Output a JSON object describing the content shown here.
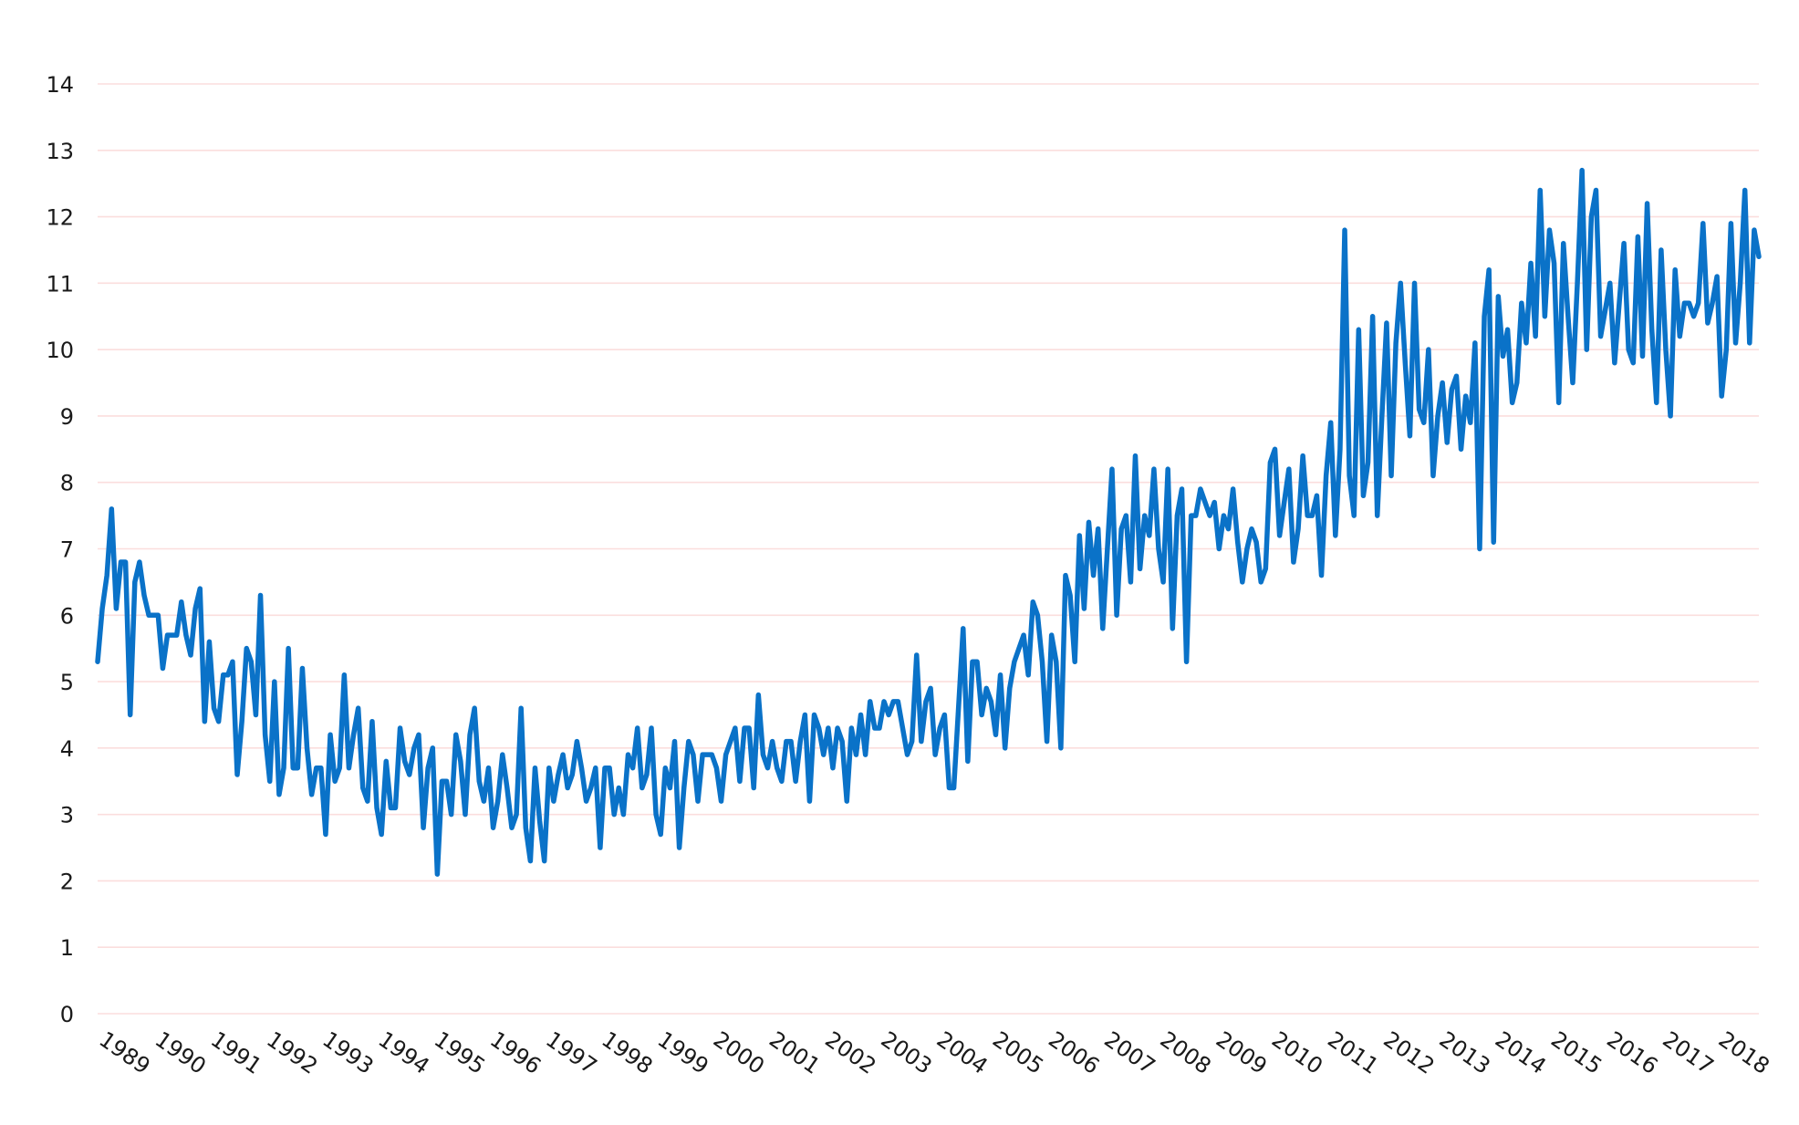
{
  "chart_data": {
    "type": "line",
    "title": "",
    "xlabel": "",
    "ylabel": "",
    "ylim": [
      0,
      14
    ],
    "yticks": [
      0,
      1,
      2,
      3,
      4,
      5,
      6,
      7,
      8,
      9,
      10,
      11,
      12,
      13,
      14
    ],
    "ytick_labels": [
      "0",
      "1",
      "2",
      "3",
      "4",
      "5",
      "6",
      "7",
      "8",
      "9",
      "10",
      "11",
      "12",
      "13",
      "14"
    ],
    "xtick_labels": [
      "1989",
      "1990",
      "1991",
      "1992",
      "1993",
      "1994",
      "1995",
      "1996",
      "1997",
      "1998",
      "1999",
      "2000",
      "2001",
      "2002",
      "2003",
      "2004",
      "2005",
      "2006",
      "2007",
      "2008",
      "2009",
      "2010",
      "2011",
      "2012",
      "2013",
      "2014",
      "2015",
      "2016",
      "2017",
      "2018"
    ],
    "xlim": [
      "1989-01",
      "2018-09"
    ],
    "grid": true,
    "colors": {
      "series": "#0a72c8",
      "grid": "#fbdedd",
      "text": "#1a1a1a"
    },
    "series": [
      {
        "frequency": "monthly",
        "start": "1989-01",
        "values": [
          5.3,
          6.1,
          6.6,
          7.6,
          6.1,
          6.8,
          6.8,
          4.5,
          6.5,
          6.8,
          6.3,
          6.0,
          6.0,
          6.0,
          5.2,
          5.7,
          5.7,
          5.7,
          6.2,
          5.7,
          5.4,
          6.1,
          6.4,
          4.4,
          5.6,
          4.6,
          4.4,
          5.1,
          5.1,
          5.3,
          3.6,
          4.4,
          5.5,
          5.3,
          4.5,
          6.3,
          4.2,
          3.5,
          5.0,
          3.3,
          3.7,
          5.5,
          3.7,
          3.7,
          5.2,
          4.0,
          3.3,
          3.7,
          3.7,
          2.7,
          4.2,
          3.5,
          3.7,
          5.1,
          3.7,
          4.2,
          4.6,
          3.4,
          3.2,
          4.4,
          3.1,
          2.7,
          3.8,
          3.1,
          3.1,
          4.3,
          3.8,
          3.6,
          4.0,
          4.2,
          2.8,
          3.7,
          4.0,
          2.1,
          3.5,
          3.5,
          3.0,
          4.2,
          3.8,
          3.0,
          4.2,
          4.6,
          3.5,
          3.2,
          3.7,
          2.8,
          3.2,
          3.9,
          3.4,
          2.8,
          3.0,
          4.6,
          2.8,
          2.3,
          3.7,
          2.9,
          2.3,
          3.7,
          3.2,
          3.6,
          3.9,
          3.4,
          3.6,
          4.1,
          3.7,
          3.2,
          3.4,
          3.7,
          2.5,
          3.7,
          3.7,
          3.0,
          3.4,
          3.0,
          3.9,
          3.7,
          4.3,
          3.4,
          3.6,
          4.3,
          3.0,
          2.7,
          3.7,
          3.4,
          4.1,
          2.5,
          3.4,
          4.1,
          3.9,
          3.2,
          3.9,
          3.9,
          3.9,
          3.7,
          3.2,
          3.9,
          4.1,
          4.3,
          3.5,
          4.3,
          4.3,
          3.4,
          4.8,
          3.9,
          3.7,
          4.1,
          3.7,
          3.5,
          4.1,
          4.1,
          3.5,
          4.1,
          4.5,
          3.2,
          4.5,
          4.3,
          3.9,
          4.3,
          3.7,
          4.3,
          4.1,
          3.2,
          4.3,
          3.9,
          4.5,
          3.9,
          4.7,
          4.3,
          4.3,
          4.7,
          4.5,
          4.7,
          4.7,
          4.3,
          3.9,
          4.1,
          5.4,
          4.1,
          4.7,
          4.9,
          3.9,
          4.3,
          4.5,
          3.4,
          3.4,
          4.6,
          5.8,
          3.8,
          5.3,
          5.3,
          4.5,
          4.9,
          4.7,
          4.2,
          5.1,
          4.0,
          4.9,
          5.3,
          5.5,
          5.7,
          5.1,
          6.2,
          6.0,
          5.3,
          4.1,
          5.7,
          5.3,
          4.0,
          6.6,
          6.3,
          5.3,
          7.2,
          6.1,
          7.4,
          6.6,
          7.3,
          5.8,
          7.0,
          8.2,
          6.0,
          7.3,
          7.5,
          6.5,
          8.4,
          6.7,
          7.5,
          7.2,
          8.2,
          7.0,
          6.5,
          8.2,
          5.8,
          7.5,
          7.9,
          5.3,
          7.5,
          7.5,
          7.9,
          7.7,
          7.5,
          7.7,
          7.0,
          7.5,
          7.3,
          7.9,
          7.1,
          6.5,
          7.0,
          7.3,
          7.1,
          6.5,
          6.7,
          8.3,
          8.5,
          7.2,
          7.7,
          8.2,
          6.8,
          7.3,
          8.4,
          7.5,
          7.5,
          7.8,
          6.6,
          8.1,
          8.9,
          7.2,
          8.5,
          11.8,
          8.1,
          7.5,
          10.3,
          7.8,
          8.3,
          10.5,
          7.5,
          9.0,
          10.4,
          8.1,
          10.1,
          11.0,
          9.8,
          8.7,
          11.0,
          9.1,
          8.9,
          10.0,
          8.1,
          9.0,
          9.5,
          8.6,
          9.4,
          9.6,
          8.5,
          9.3,
          8.9,
          10.1,
          7.0,
          10.5,
          11.2,
          7.1,
          10.8,
          9.9,
          10.3,
          9.2,
          9.5,
          10.7,
          10.1,
          11.3,
          10.2,
          12.4,
          10.5,
          11.8,
          11.3,
          9.2,
          11.6,
          10.5,
          9.5,
          11.0,
          12.7,
          10.0,
          12.0,
          12.4,
          10.2,
          10.6,
          11.0,
          9.8,
          10.7,
          11.6,
          10.0,
          9.8,
          11.7,
          9.9,
          12.2,
          10.3,
          9.2,
          11.5,
          10.0,
          9.0,
          11.2,
          10.2,
          10.7,
          10.7,
          10.5,
          10.7,
          11.9,
          10.4,
          10.7,
          11.1,
          9.3,
          10.0,
          11.9,
          10.1,
          11.0,
          12.4,
          10.1,
          11.8,
          11.4
        ]
      }
    ]
  }
}
